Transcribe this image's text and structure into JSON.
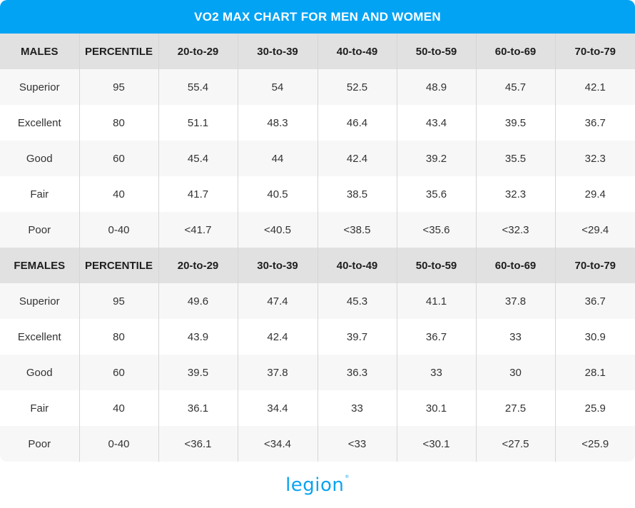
{
  "title": "VO2 MAX CHART FOR MEN AND WOMEN",
  "colors": {
    "title_bar": "#03a3f4",
    "header_row": "#e1e1e1",
    "shaded_row": "#f7f7f7",
    "logo": "#0aa4f0"
  },
  "logo": {
    "text": "legion",
    "mark": "®"
  },
  "chart_data": {
    "type": "table",
    "title": "VO2 MAX CHART FOR MEN AND WOMEN",
    "sections": [
      {
        "columns": [
          "MALES",
          "PERCENTILE",
          "20-to-29",
          "30-to-39",
          "40-to-49",
          "50-to-59",
          "60-to-69",
          "70-to-79"
        ],
        "rows": [
          [
            "Superior",
            "95",
            "55.4",
            "54",
            "52.5",
            "48.9",
            "45.7",
            "42.1"
          ],
          [
            "Excellent",
            "80",
            "51.1",
            "48.3",
            "46.4",
            "43.4",
            "39.5",
            "36.7"
          ],
          [
            "Good",
            "60",
            "45.4",
            "44",
            "42.4",
            "39.2",
            "35.5",
            "32.3"
          ],
          [
            "Fair",
            "40",
            "41.7",
            "40.5",
            "38.5",
            "35.6",
            "32.3",
            "29.4"
          ],
          [
            "Poor",
            "0-40",
            "<41.7",
            "<40.5",
            "<38.5",
            "<35.6",
            "<32.3",
            "<29.4"
          ]
        ]
      },
      {
        "columns": [
          "FEMALES",
          "PERCENTILE",
          "20-to-29",
          "30-to-39",
          "40-to-49",
          "50-to-59",
          "60-to-69",
          "70-to-79"
        ],
        "rows": [
          [
            "Superior",
            "95",
            "49.6",
            "47.4",
            "45.3",
            "41.1",
            "37.8",
            "36.7"
          ],
          [
            "Excellent",
            "80",
            "43.9",
            "42.4",
            "39.7",
            "36.7",
            "33",
            "30.9"
          ],
          [
            "Good",
            "60",
            "39.5",
            "37.8",
            "36.3",
            "33",
            "30",
            "28.1"
          ],
          [
            "Fair",
            "40",
            "36.1",
            "34.4",
            "33",
            "30.1",
            "27.5",
            "25.9"
          ],
          [
            "Poor",
            "0-40",
            "<36.1",
            "<34.4",
            "<33",
            "<30.1",
            "<27.5",
            "<25.9"
          ]
        ]
      }
    ]
  }
}
